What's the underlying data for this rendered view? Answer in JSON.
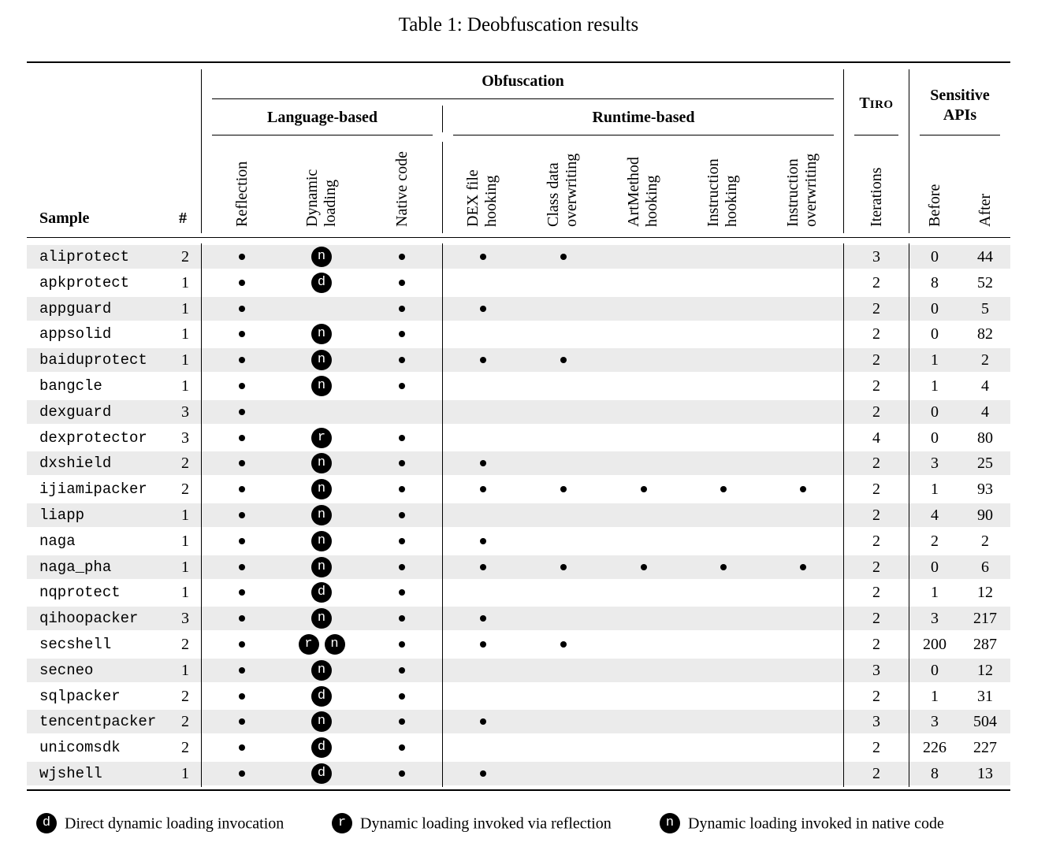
{
  "caption": "Table 1: Deobfuscation results",
  "headers": {
    "obfuscation": "Obfuscation",
    "language_based": "Language-based",
    "runtime_based": "Runtime-based",
    "tiro_first": "T",
    "tiro_rest": "IRO",
    "sensitive_line1": "Sensitive",
    "sensitive_line2": "APIs",
    "sample": "Sample",
    "count": "#",
    "reflection": "Reflection",
    "dynamic1": "Dynamic",
    "dynamic2": "loading",
    "native": "Native code",
    "dex1": "DEX file",
    "dex2": "hooking",
    "classdata1": "Class data",
    "classdata2": "overwriting",
    "artmethod1": "ArtMethod",
    "artmethod2": "hooking",
    "insthook1": "Instruction",
    "insthook2": "hooking",
    "instover1": "Instruction",
    "instover2": "overwriting",
    "iterations": "Iterations",
    "before": "Before",
    "after": "After"
  },
  "rows": [
    {
      "name": "aliprotect",
      "count": "2",
      "refl": true,
      "dyn": [
        "n"
      ],
      "native": true,
      "dex": true,
      "cls": true,
      "art": false,
      "ihook": false,
      "iover": false,
      "iter": "3",
      "before": "0",
      "after": "44"
    },
    {
      "name": "apkprotect",
      "count": "1",
      "refl": true,
      "dyn": [
        "d"
      ],
      "native": true,
      "dex": false,
      "cls": false,
      "art": false,
      "ihook": false,
      "iover": false,
      "iter": "2",
      "before": "8",
      "after": "52"
    },
    {
      "name": "appguard",
      "count": "1",
      "refl": true,
      "dyn": [],
      "native": true,
      "dex": true,
      "cls": false,
      "art": false,
      "ihook": false,
      "iover": false,
      "iter": "2",
      "before": "0",
      "after": "5"
    },
    {
      "name": "appsolid",
      "count": "1",
      "refl": true,
      "dyn": [
        "n"
      ],
      "native": true,
      "dex": false,
      "cls": false,
      "art": false,
      "ihook": false,
      "iover": false,
      "iter": "2",
      "before": "0",
      "after": "82"
    },
    {
      "name": "baiduprotect",
      "count": "1",
      "refl": true,
      "dyn": [
        "n"
      ],
      "native": true,
      "dex": true,
      "cls": true,
      "art": false,
      "ihook": false,
      "iover": false,
      "iter": "2",
      "before": "1",
      "after": "2"
    },
    {
      "name": "bangcle",
      "count": "1",
      "refl": true,
      "dyn": [
        "n"
      ],
      "native": true,
      "dex": false,
      "cls": false,
      "art": false,
      "ihook": false,
      "iover": false,
      "iter": "2",
      "before": "1",
      "after": "4"
    },
    {
      "name": "dexguard",
      "count": "3",
      "refl": true,
      "dyn": [],
      "native": false,
      "dex": false,
      "cls": false,
      "art": false,
      "ihook": false,
      "iover": false,
      "iter": "2",
      "before": "0",
      "after": "4"
    },
    {
      "name": "dexprotector",
      "count": "3",
      "refl": true,
      "dyn": [
        "r"
      ],
      "native": true,
      "dex": false,
      "cls": false,
      "art": false,
      "ihook": false,
      "iover": false,
      "iter": "4",
      "before": "0",
      "after": "80"
    },
    {
      "name": "dxshield",
      "count": "2",
      "refl": true,
      "dyn": [
        "n"
      ],
      "native": true,
      "dex": true,
      "cls": false,
      "art": false,
      "ihook": false,
      "iover": false,
      "iter": "2",
      "before": "3",
      "after": "25"
    },
    {
      "name": "ijiamipacker",
      "count": "2",
      "refl": true,
      "dyn": [
        "n"
      ],
      "native": true,
      "dex": true,
      "cls": true,
      "art": true,
      "ihook": true,
      "iover": true,
      "iter": "2",
      "before": "1",
      "after": "93"
    },
    {
      "name": "liapp",
      "count": "1",
      "refl": true,
      "dyn": [
        "n"
      ],
      "native": true,
      "dex": false,
      "cls": false,
      "art": false,
      "ihook": false,
      "iover": false,
      "iter": "2",
      "before": "4",
      "after": "90"
    },
    {
      "name": "naga",
      "count": "1",
      "refl": true,
      "dyn": [
        "n"
      ],
      "native": true,
      "dex": true,
      "cls": false,
      "art": false,
      "ihook": false,
      "iover": false,
      "iter": "2",
      "before": "2",
      "after": "2"
    },
    {
      "name": "naga_pha",
      "count": "1",
      "refl": true,
      "dyn": [
        "n"
      ],
      "native": true,
      "dex": true,
      "cls": true,
      "art": true,
      "ihook": true,
      "iover": true,
      "iter": "2",
      "before": "0",
      "after": "6"
    },
    {
      "name": "nqprotect",
      "count": "1",
      "refl": true,
      "dyn": [
        "d"
      ],
      "native": true,
      "dex": false,
      "cls": false,
      "art": false,
      "ihook": false,
      "iover": false,
      "iter": "2",
      "before": "1",
      "after": "12"
    },
    {
      "name": "qihoopacker",
      "count": "3",
      "refl": true,
      "dyn": [
        "n"
      ],
      "native": true,
      "dex": true,
      "cls": false,
      "art": false,
      "ihook": false,
      "iover": false,
      "iter": "2",
      "before": "3",
      "after": "217"
    },
    {
      "name": "secshell",
      "count": "2",
      "refl": true,
      "dyn": [
        "r",
        "n"
      ],
      "native": true,
      "dex": true,
      "cls": true,
      "art": false,
      "ihook": false,
      "iover": false,
      "iter": "2",
      "before": "200",
      "after": "287"
    },
    {
      "name": "secneo",
      "count": "1",
      "refl": true,
      "dyn": [
        "n"
      ],
      "native": true,
      "dex": false,
      "cls": false,
      "art": false,
      "ihook": false,
      "iover": false,
      "iter": "3",
      "before": "0",
      "after": "12"
    },
    {
      "name": "sqlpacker",
      "count": "2",
      "refl": true,
      "dyn": [
        "d"
      ],
      "native": true,
      "dex": false,
      "cls": false,
      "art": false,
      "ihook": false,
      "iover": false,
      "iter": "2",
      "before": "1",
      "after": "31"
    },
    {
      "name": "tencentpacker",
      "count": "2",
      "refl": true,
      "dyn": [
        "n"
      ],
      "native": true,
      "dex": true,
      "cls": false,
      "art": false,
      "ihook": false,
      "iover": false,
      "iter": "3",
      "before": "3",
      "after": "504"
    },
    {
      "name": "unicomsdk",
      "count": "2",
      "refl": true,
      "dyn": [
        "d"
      ],
      "native": true,
      "dex": false,
      "cls": false,
      "art": false,
      "ihook": false,
      "iover": false,
      "iter": "2",
      "before": "226",
      "after": "227"
    },
    {
      "name": "wjshell",
      "count": "1",
      "refl": true,
      "dyn": [
        "d"
      ],
      "native": true,
      "dex": true,
      "cls": false,
      "art": false,
      "ihook": false,
      "iover": false,
      "iter": "2",
      "before": "8",
      "after": "13"
    }
  ],
  "legend": [
    {
      "badge": "d",
      "text": "Direct dynamic loading invocation"
    },
    {
      "badge": "r",
      "text": "Dynamic loading invoked via reflection"
    },
    {
      "badge": "n",
      "text": "Dynamic loading invoked in native code"
    }
  ]
}
